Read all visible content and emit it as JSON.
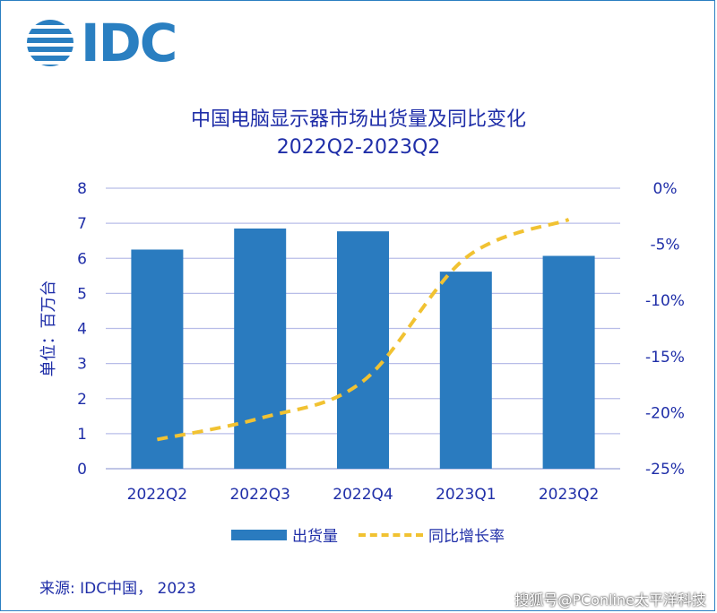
{
  "logo": {
    "text": "IDC"
  },
  "chart_data": {
    "type": "bar",
    "title": "中国电脑显示器市场出货量及同比变化",
    "subtitle": "2022Q2-2023Q2",
    "categories": [
      "2022Q2",
      "2022Q3",
      "2022Q4",
      "2023Q1",
      "2023Q2"
    ],
    "ylabel": "单位：百万台",
    "ylim": [
      0,
      8
    ],
    "y_ticks": [
      "0",
      "1",
      "2",
      "3",
      "4",
      "5",
      "6",
      "7",
      "8"
    ],
    "y2lim": [
      -25,
      0
    ],
    "y2_ticks": [
      "0%",
      "-5%",
      "-10%",
      "-15%",
      "-20%",
      "-25%"
    ],
    "grid": true,
    "legend_position": "bottom",
    "series": [
      {
        "name": "出货量",
        "type": "bar",
        "axis": "left",
        "color": "#2a7bbf",
        "values": [
          6.25,
          6.85,
          6.77,
          5.62,
          6.07
        ]
      },
      {
        "name": "同比增长率",
        "type": "line",
        "axis": "right",
        "style": "dashed",
        "color": "#f1c232",
        "values": [
          -22.4,
          -20.5,
          -17.2,
          -6.2,
          -2.8
        ]
      }
    ]
  },
  "source": "来源: IDC中国， 2023",
  "watermark": "搜狐号@PConline太平洋科技"
}
